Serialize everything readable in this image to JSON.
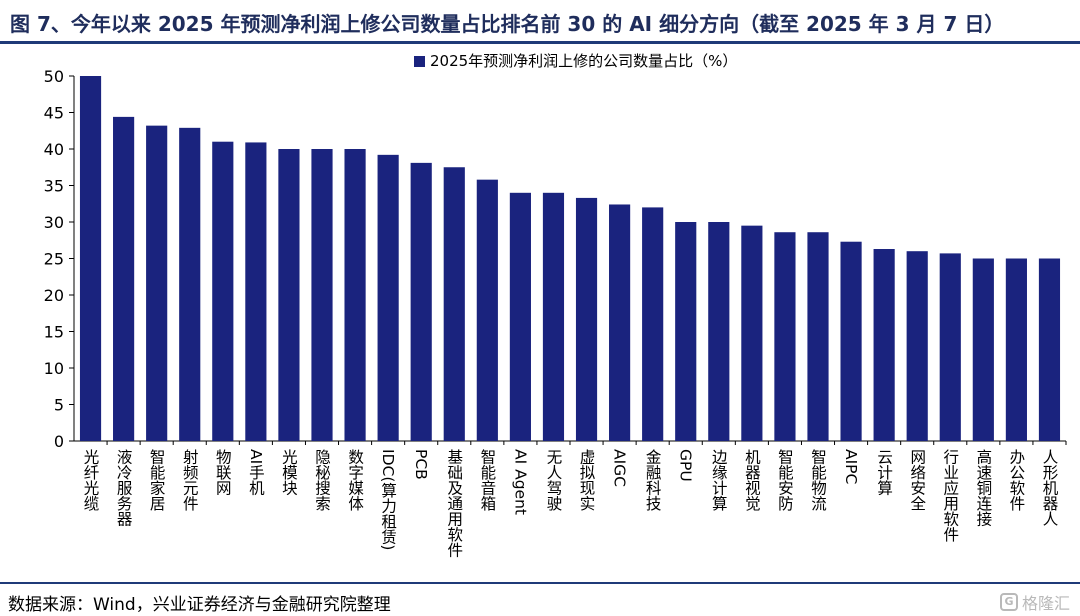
{
  "title": "图 7、今年以来 2025 年预测净利润上修公司数量占比排名前 30 的 AI 细分方向（截至 2025 年 3 月 7 日）",
  "source": "数据来源：Wind，兴业证券经济与金融研究院整理",
  "watermark": "格隆汇",
  "watermark_logo": "G",
  "colors": {
    "bar": "#1a237e",
    "title": "#1f2d5c",
    "rule": "#1f3a78"
  },
  "chart_data": {
    "type": "bar",
    "legend_position": "top-center",
    "grid": false,
    "ylim": [
      0,
      50
    ],
    "yticks": [
      "0",
      "5",
      "10",
      "15",
      "20",
      "25",
      "30",
      "35",
      "40",
      "45",
      "50"
    ],
    "series": [
      {
        "name": "2025年预测净利润上修的公司数量占比（%）",
        "values": [
          50,
          44.4,
          43.2,
          42.9,
          41.0,
          40.9,
          40.0,
          40.0,
          40.0,
          39.2,
          38.1,
          37.5,
          35.8,
          34.0,
          34.0,
          33.3,
          32.4,
          32.0,
          30.0,
          30.0,
          29.5,
          28.6,
          28.6,
          27.3,
          26.3,
          26.0,
          25.7,
          25.0,
          25.0,
          25.0
        ]
      }
    ],
    "categories": [
      "光纤光缆",
      "液冷服务器",
      "智能家居",
      "射频元件",
      "物联网",
      "AI手机",
      "光模块",
      "隐秘搜索",
      "数字媒体",
      "IDC(算力租赁)",
      "PCB",
      "基础及通用软件",
      "智能音箱",
      "AI Agent",
      "无人驾驶",
      "虚拟现实",
      "AIGC",
      "金融科技",
      "GPU",
      "边缘计算",
      "机器视觉",
      "智能安防",
      "智能物流",
      "AIPC",
      "云计算",
      "网络安全",
      "行业应用软件",
      "高速铜连接",
      "办公软件",
      "人形机器人"
    ]
  }
}
